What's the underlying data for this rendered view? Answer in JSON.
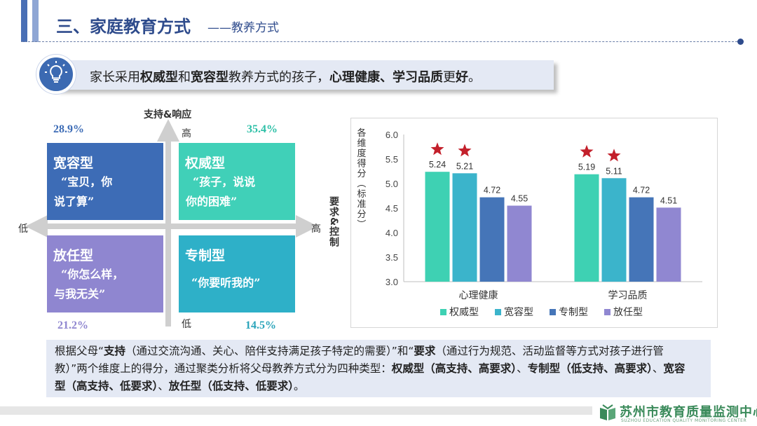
{
  "header": {
    "title": "三、家庭教育方式",
    "subtitle": "——教养方式"
  },
  "key_message": {
    "icon": "lightbulb-icon",
    "parts": [
      "家长采用",
      "权威型",
      "和",
      "宽容型",
      "教养方式的孩子，",
      "心理健康、学习品质",
      "更",
      "好",
      "。"
    ]
  },
  "quadrant": {
    "y_axis_label": "支持&响应",
    "x_axis_label": "要求&控制",
    "y_high": "高",
    "y_low": "低",
    "x_high": "高",
    "x_low": "低",
    "quadrants": [
      {
        "name": "宽容型",
        "quote_line1": "“宝贝，你",
        "quote_line2": "说了算”",
        "percent": "28.9%",
        "color": "#3d6cb6",
        "pct_color": "#3d6cb6"
      },
      {
        "name": "权威型",
        "quote_line1": "“孩子，说说",
        "quote_line2": "你的困难”",
        "percent": "35.4%",
        "color": "#40d0b8",
        "pct_color": "#2bbfa6"
      },
      {
        "name": "放任型",
        "quote_line1": "“你怎么样，",
        "quote_line2": "与我无关”",
        "percent": "21.2%",
        "color": "#8f86d0",
        "pct_color": "#8f86d0"
      },
      {
        "name": "专制型",
        "quote_line1": "“你要听我的”",
        "quote_line2": "",
        "percent": "14.5%",
        "color": "#2eb0c8",
        "pct_color": "#2aa4ba"
      }
    ]
  },
  "chart_data": {
    "type": "bar",
    "categories": [
      "心理健康",
      "学习品质"
    ],
    "series": [
      {
        "name": "权威型",
        "values": [
          5.24,
          5.19
        ],
        "color": "#3ed1b3"
      },
      {
        "name": "宽容型",
        "values": [
          5.21,
          5.11
        ],
        "color": "#3bb4cb"
      },
      {
        "name": "专制型",
        "values": [
          4.72,
          4.72
        ],
        "color": "#4575b8"
      },
      {
        "name": "放任型",
        "values": [
          4.55,
          4.51
        ],
        "color": "#9087d1"
      }
    ],
    "ylabel": "各维度得分（标准分）",
    "ylim": [
      3.0,
      6.0
    ],
    "yticks": [
      3.0,
      3.5,
      4.0,
      4.5,
      5.0,
      5.5,
      6.0
    ],
    "ytick_labels": [
      "3.0",
      "3.5",
      "4.0",
      "4.5",
      "5.0",
      "5.5",
      "6.0"
    ],
    "starred_series": [
      "权威型",
      "宽容型"
    ],
    "star_color": "#c3202b",
    "legend_position": "bottom",
    "grid": false
  },
  "description": {
    "parts": [
      {
        "t": "根据父母“",
        "b": false
      },
      {
        "t": "支持",
        "b": true
      },
      {
        "t": "（通过交流沟通、关心、陪伴支持满足孩子特定的需要）”和“",
        "b": false
      },
      {
        "t": "要求",
        "b": true
      },
      {
        "t": "（通过行为规范、活动监督等方式对孩子进行管教）”两个维度上的得分，通过聚类分析将父母教养方式分为四种类型：",
        "b": false
      },
      {
        "t": "权威型（高支持、高要求）",
        "b": true
      },
      {
        "t": "、",
        "b": false
      },
      {
        "t": "专制型（低支持、高要求）",
        "b": true
      },
      {
        "t": "、",
        "b": false
      },
      {
        "t": "宽容型（高支持、低要求）",
        "b": true
      },
      {
        "t": "、",
        "b": false
      },
      {
        "t": "放任型（低支持、低要求）",
        "b": true
      },
      {
        "t": "。",
        "b": false
      }
    ]
  },
  "footer": {
    "org_name": "苏州市教育质量监测中心",
    "org_name_en": "SUZHOU EDUCATION QUALITY MONITORING CENTER",
    "logo": "book-logo-icon"
  }
}
